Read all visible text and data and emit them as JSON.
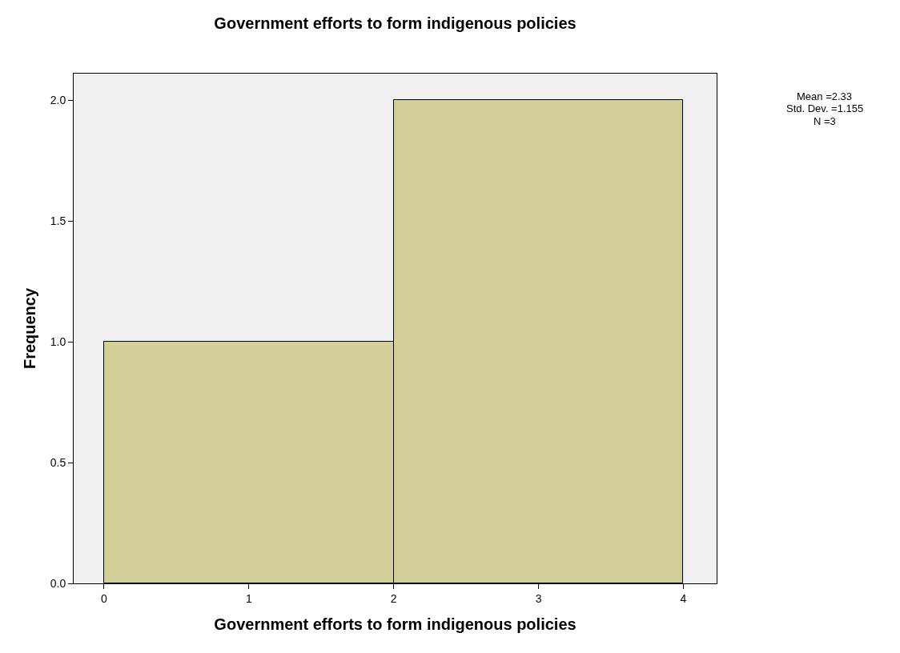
{
  "chart_data": {
    "type": "histogram",
    "title": "Government efforts to form indigenous policies",
    "xlabel": "Government efforts to form indigenous policies",
    "ylabel": "Frequency",
    "bins": [
      0,
      2,
      4
    ],
    "values": [
      1,
      2
    ],
    "color": "#d3cf98",
    "xlim": [
      -0.21,
      4.23
    ],
    "xticks": [
      0,
      1,
      2,
      3,
      4
    ],
    "ylim": [
      0,
      2.11
    ],
    "yticks": [
      {
        "value": 0,
        "label": "0.0"
      },
      {
        "value": 0.5,
        "label": "0.5"
      },
      {
        "value": 1,
        "label": "1.0"
      },
      {
        "value": 1.5,
        "label": "1.5"
      },
      {
        "value": 2,
        "label": "2.0"
      }
    ],
    "grid": false,
    "annotations": [
      "Mean =2.33",
      "Std. Dev. =1.155",
      "N =3"
    ]
  }
}
